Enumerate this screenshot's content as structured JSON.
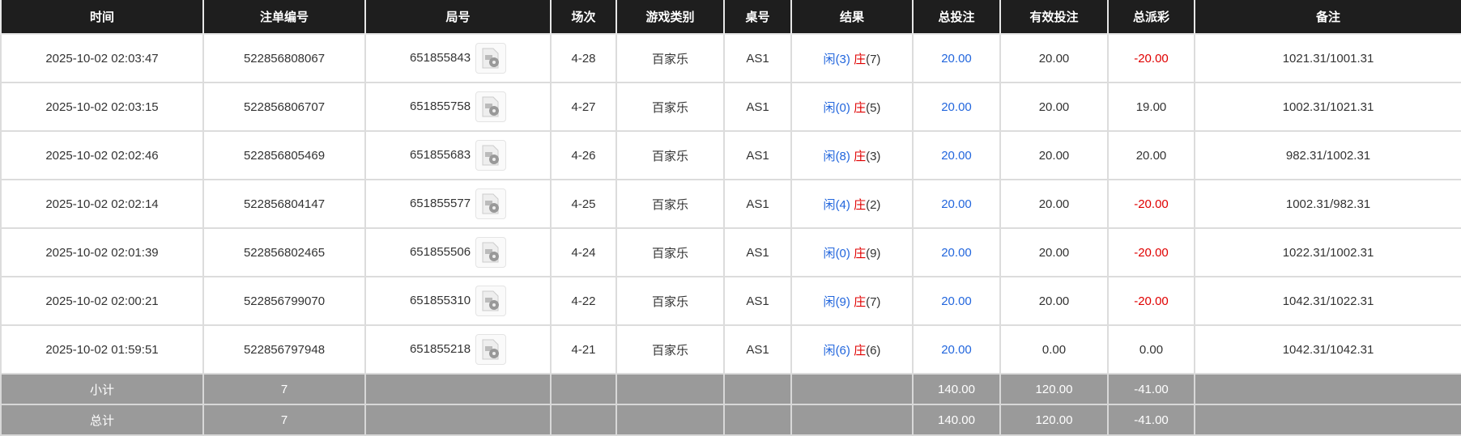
{
  "headers": [
    "时间",
    "注单编号",
    "局号",
    "场次",
    "游戏类别",
    "桌号",
    "结果",
    "总投注",
    "有效投注",
    "总派彩",
    "备注"
  ],
  "rows": [
    {
      "time": "2025-10-02 02:03:47",
      "bet_id": "522856808067",
      "round": "651855843",
      "session": "4-28",
      "game": "百家乐",
      "table": "AS1",
      "player_label": "闲",
      "player": "(3)",
      "banker_label": "庄",
      "banker": "(7)",
      "total": "20.00",
      "valid": "20.00",
      "payout": "-20.00",
      "payout_neg": true,
      "note": "1021.31/1001.31"
    },
    {
      "time": "2025-10-02 02:03:15",
      "bet_id": "522856806707",
      "round": "651855758",
      "session": "4-27",
      "game": "百家乐",
      "table": "AS1",
      "player_label": "闲",
      "player": "(0)",
      "banker_label": "庄",
      "banker": "(5)",
      "total": "20.00",
      "valid": "20.00",
      "payout": "19.00",
      "payout_neg": false,
      "note": "1002.31/1021.31"
    },
    {
      "time": "2025-10-02 02:02:46",
      "bet_id": "522856805469",
      "round": "651855683",
      "session": "4-26",
      "game": "百家乐",
      "table": "AS1",
      "player_label": "闲",
      "player": "(8)",
      "banker_label": "庄",
      "banker": "(3)",
      "total": "20.00",
      "valid": "20.00",
      "payout": "20.00",
      "payout_neg": false,
      "note": "982.31/1002.31"
    },
    {
      "time": "2025-10-02 02:02:14",
      "bet_id": "522856804147",
      "round": "651855577",
      "session": "4-25",
      "game": "百家乐",
      "table": "AS1",
      "player_label": "闲",
      "player": "(4)",
      "banker_label": "庄",
      "banker": "(2)",
      "total": "20.00",
      "valid": "20.00",
      "payout": "-20.00",
      "payout_neg": true,
      "note": "1002.31/982.31"
    },
    {
      "time": "2025-10-02 02:01:39",
      "bet_id": "522856802465",
      "round": "651855506",
      "session": "4-24",
      "game": "百家乐",
      "table": "AS1",
      "player_label": "闲",
      "player": "(0)",
      "banker_label": "庄",
      "banker": "(9)",
      "total": "20.00",
      "valid": "20.00",
      "payout": "-20.00",
      "payout_neg": true,
      "note": "1022.31/1002.31"
    },
    {
      "time": "2025-10-02 02:00:21",
      "bet_id": "522856799070",
      "round": "651855310",
      "session": "4-22",
      "game": "百家乐",
      "table": "AS1",
      "player_label": "闲",
      "player": "(9)",
      "banker_label": "庄",
      "banker": "(7)",
      "total": "20.00",
      "valid": "20.00",
      "payout": "-20.00",
      "payout_neg": true,
      "note": "1042.31/1022.31"
    },
    {
      "time": "2025-10-02 01:59:51",
      "bet_id": "522856797948",
      "round": "651855218",
      "session": "4-21",
      "game": "百家乐",
      "table": "AS1",
      "player_label": "闲",
      "player": "(6)",
      "banker_label": "庄",
      "banker": "(6)",
      "total": "20.00",
      "valid": "0.00",
      "payout": "0.00",
      "payout_neg": false,
      "note": "1042.31/1042.31"
    }
  ],
  "subtotal": {
    "label": "小计",
    "count": "7",
    "total": "140.00",
    "valid": "120.00",
    "payout": "-41.00"
  },
  "grand_total": {
    "label": "总计",
    "count": "7",
    "total": "140.00",
    "valid": "120.00",
    "payout": "-41.00"
  },
  "colors": {
    "header_bg": "#1e1e1e",
    "player": "#2266dd",
    "banker_negative": "#e00000",
    "summary_bg": "#9a9a9a"
  },
  "icons": {
    "replay": "video-file-icon"
  }
}
